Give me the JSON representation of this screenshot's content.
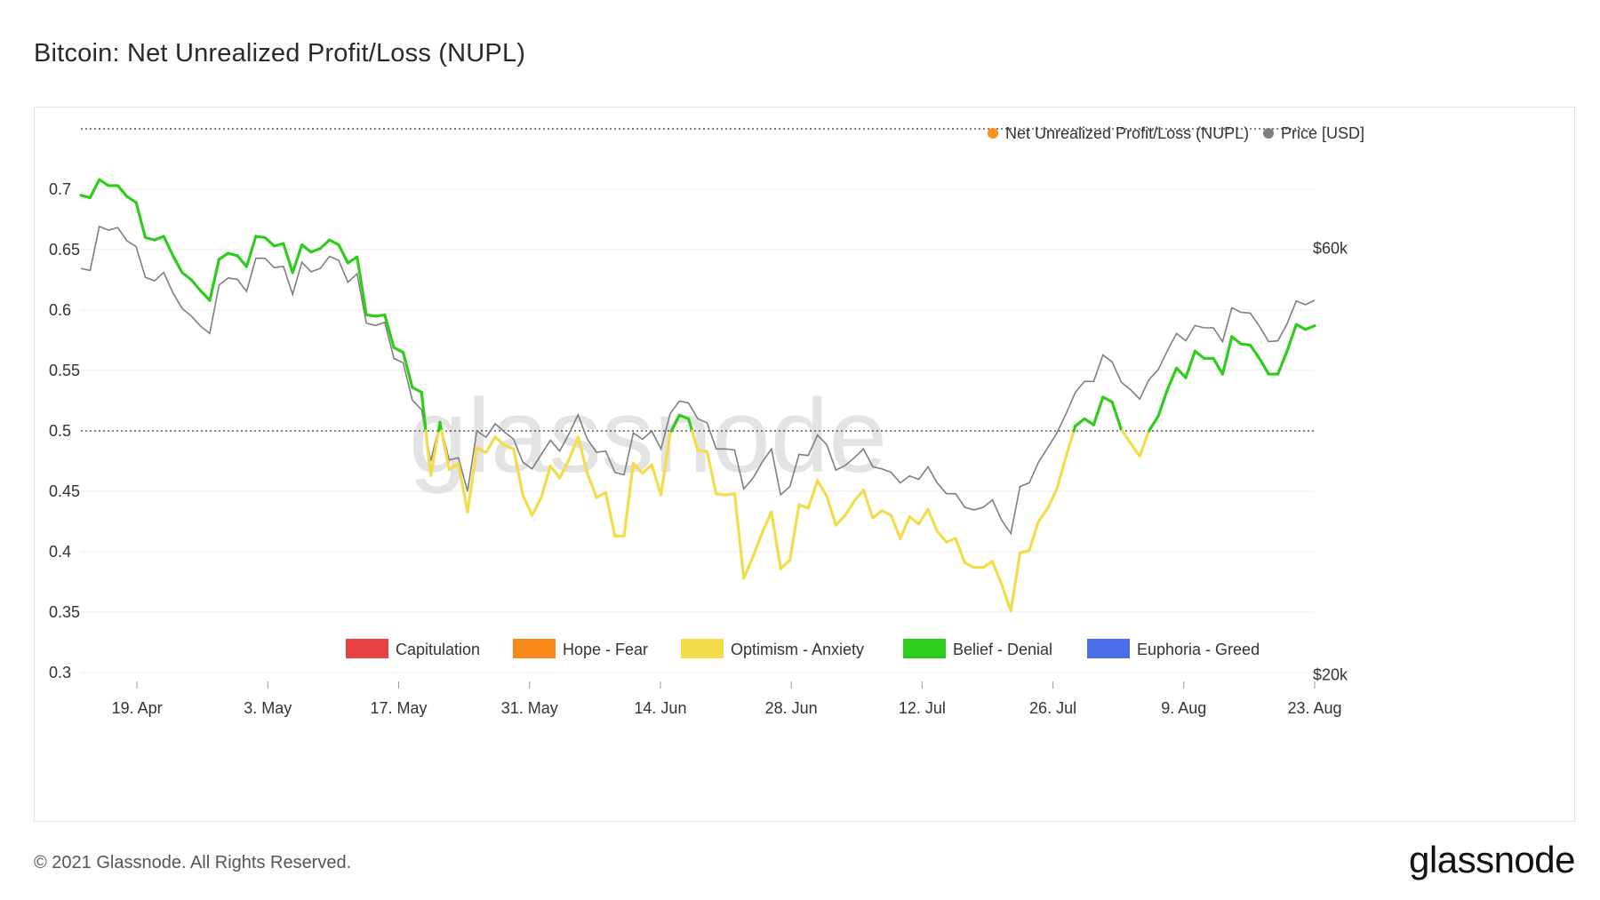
{
  "title": "Bitcoin: Net Unrealized Profit/Loss (NUPL)",
  "footer": "© 2021 Glassnode. All Rights Reserved.",
  "brand": "glassnode",
  "watermark": "glassnode",
  "colors": {
    "price": "#7f7f7f",
    "nupl_marker": "#f7931a",
    "belief": "#2ecc1b",
    "optimism": "#f2dc4a",
    "capitulation": "#e84141",
    "hope": "#f7891a",
    "euphoria": "#4a6ee8"
  },
  "chart_data": {
    "type": "line",
    "title": "Bitcoin: Net Unrealized Profit/Loss (NUPL)",
    "ylim": [
      0.3,
      0.75
    ],
    "y_ticks": [
      "0.7",
      "0.65",
      "0.6",
      "0.55",
      "0.5",
      "0.45",
      "0.4",
      "0.35",
      "0.3"
    ],
    "y_tick_values": [
      0.7,
      0.65,
      0.6,
      0.55,
      0.5,
      0.45,
      0.4,
      0.35,
      0.3
    ],
    "right_ticks": [
      "$60k",
      "$20k"
    ],
    "right_tick_values": [
      60000,
      20000
    ],
    "price_scale": "log",
    "x_tick_labels": [
      "19. Apr",
      "3. May",
      "17. May",
      "31. May",
      "14. Jun",
      "28. Jun",
      "12. Jul",
      "26. Jul",
      "9. Aug",
      "23. Aug"
    ],
    "x_tick_dates": [
      "2021-04-19",
      "2021-05-03",
      "2021-05-17",
      "2021-05-31",
      "2021-06-14",
      "2021-06-28",
      "2021-07-12",
      "2021-07-26",
      "2021-08-09",
      "2021-08-23"
    ],
    "reference_lines": [
      0.5,
      0.75
    ],
    "legend_top": [
      {
        "name": "Net Unrealized Profit/Loss (NUPL)",
        "color": "#f7931a"
      },
      {
        "name": "Price [USD]",
        "color": "#7f7f7f"
      }
    ],
    "legend_bottom": [
      {
        "name": "Capitulation",
        "color": "#e84141"
      },
      {
        "name": "Hope - Fear",
        "color": "#f7891a"
      },
      {
        "name": "Optimism - Anxiety",
        "color": "#f2dc4a"
      },
      {
        "name": "Belief - Denial",
        "color": "#2ecc1b"
      },
      {
        "name": "Euphoria - Greed",
        "color": "#4a6ee8"
      }
    ],
    "x_start": "2021-04-13",
    "x_end": "2021-08-23",
    "nupl": [
      0.695,
      0.693,
      0.708,
      0.703,
      0.703,
      0.694,
      0.689,
      0.66,
      0.658,
      0.661,
      0.645,
      0.631,
      0.625,
      0.616,
      0.608,
      0.642,
      0.647,
      0.645,
      0.636,
      0.661,
      0.66,
      0.653,
      0.655,
      0.631,
      0.654,
      0.648,
      0.651,
      0.658,
      0.654,
      0.639,
      0.644,
      0.596,
      0.595,
      0.596,
      0.569,
      0.565,
      0.536,
      0.532,
      0.463,
      0.507,
      0.468,
      0.473,
      0.433,
      0.486,
      0.482,
      0.495,
      0.488,
      0.485,
      0.447,
      0.43,
      0.445,
      0.471,
      0.461,
      0.476,
      0.495,
      0.465,
      0.445,
      0.449,
      0.413,
      0.413,
      0.473,
      0.465,
      0.472,
      0.447,
      0.498,
      0.513,
      0.51,
      0.484,
      0.483,
      0.448,
      0.447,
      0.448,
      0.378,
      0.396,
      0.416,
      0.433,
      0.386,
      0.393,
      0.439,
      0.436,
      0.459,
      0.446,
      0.422,
      0.43,
      0.442,
      0.451,
      0.428,
      0.434,
      0.43,
      0.411,
      0.429,
      0.423,
      0.435,
      0.417,
      0.408,
      0.411,
      0.391,
      0.387,
      0.387,
      0.392,
      0.373,
      0.351,
      0.399,
      0.401,
      0.425,
      0.436,
      0.452,
      0.479,
      0.504,
      0.51,
      0.505,
      0.528,
      0.524,
      0.501,
      0.49,
      0.479,
      0.5,
      0.512,
      0.534,
      0.552,
      0.544,
      0.566,
      0.56,
      0.56,
      0.547,
      0.578,
      0.572,
      0.571,
      0.56,
      0.547,
      0.547,
      0.566,
      0.588,
      0.584,
      0.587
    ],
    "price": [
      57000,
      56700,
      63500,
      62900,
      63300,
      61200,
      60300,
      55700,
      55200,
      56400,
      53500,
      51400,
      50400,
      49100,
      48200,
      54600,
      55600,
      55400,
      53700,
      58500,
      58500,
      57100,
      57300,
      53300,
      57900,
      56500,
      57000,
      58800,
      58200,
      55000,
      56200,
      49500,
      49200,
      49600,
      45200,
      44700,
      40600,
      39600,
      34700,
      38300,
      34800,
      35000,
      32100,
      37500,
      36900,
      38200,
      37400,
      36700,
      34600,
      34000,
      35300,
      36600,
      35600,
      37200,
      39100,
      36700,
      35500,
      35600,
      33700,
      33500,
      37300,
      36700,
      37500,
      35800,
      39200,
      40500,
      40300,
      38700,
      38300,
      35800,
      35800,
      35700,
      32300,
      33200,
      34600,
      35800,
      31800,
      32500,
      35300,
      35200,
      37100,
      36200,
      33900,
      34300,
      35000,
      35800,
      34200,
      34000,
      33700,
      32800,
      33400,
      33100,
      34200,
      32800,
      31900,
      31900,
      30800,
      30600,
      30800,
      31400,
      29800,
      28800,
      32500,
      32800,
      34600,
      35900,
      37300,
      39200,
      41400,
      42600,
      42600,
      45600,
      44800,
      42500,
      41700,
      40700,
      42800,
      43900,
      46100,
      48200,
      47300,
      49200,
      48900,
      48900,
      47200,
      51500,
      50900,
      50800,
      49100,
      47200,
      47300,
      49400,
      52400,
      51900,
      52500
    ]
  }
}
